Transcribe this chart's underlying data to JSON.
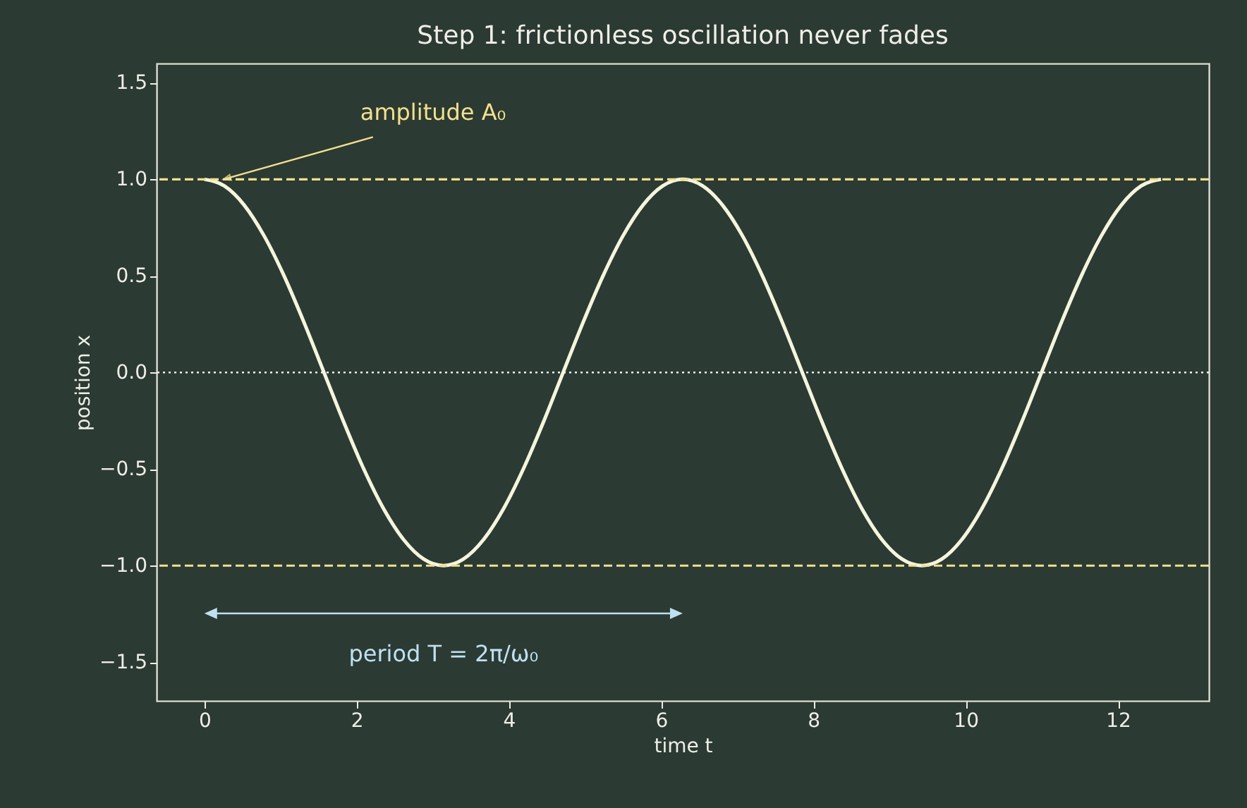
{
  "chart_data": {
    "type": "line",
    "title": "Step 1: frictionless oscillation never fades",
    "xlabel": "time t",
    "ylabel": "position x",
    "x": [
      0,
      0.262,
      0.524,
      0.785,
      1.047,
      1.309,
      1.571,
      1.833,
      2.094,
      2.356,
      2.618,
      2.88,
      3.142,
      3.403,
      3.665,
      3.927,
      4.189,
      4.451,
      4.712,
      4.974,
      5.236,
      5.498,
      5.76,
      6.021,
      6.283,
      6.545,
      6.807,
      7.069,
      7.33,
      7.592,
      7.854,
      8.116,
      8.378,
      8.639,
      8.901,
      9.163,
      9.425,
      9.687,
      9.948,
      10.21,
      10.472,
      10.734,
      10.996,
      11.257,
      11.519,
      11.781,
      12.043,
      12.305,
      12.566
    ],
    "series": [
      {
        "color": "#f5f5dc",
        "values": [
          1,
          0.966,
          0.866,
          0.707,
          0.5,
          0.259,
          0,
          -0.259,
          -0.5,
          -0.707,
          -0.866,
          -0.966,
          -1,
          -0.966,
          -0.866,
          -0.707,
          -0.5,
          -0.259,
          0,
          0.259,
          0.5,
          0.707,
          0.866,
          0.966,
          1,
          0.966,
          0.866,
          0.707,
          0.5,
          0.259,
          0,
          -0.259,
          -0.5,
          -0.707,
          -0.866,
          -0.966,
          -1,
          -0.966,
          -0.866,
          -0.707,
          -0.5,
          -0.259,
          0,
          0.259,
          0.5,
          0.707,
          0.866,
          0.966,
          1
        ]
      }
    ],
    "xlim": [
      -0.628,
      13.195
    ],
    "ylim": [
      -1.7,
      1.6
    ],
    "xticks": [
      0,
      2,
      4,
      6,
      8,
      10,
      12
    ],
    "yticks": [
      {
        "value": -1.5,
        "label": "−1.5"
      },
      {
        "value": -1.0,
        "label": "−1.0"
      },
      {
        "value": -0.5,
        "label": "−0.5"
      },
      {
        "value": 0,
        "label": "0.0"
      },
      {
        "value": 0.5,
        "label": "0.5"
      },
      {
        "value": 1.0,
        "label": "1.0"
      },
      {
        "value": 1.5,
        "label": "1.5"
      }
    ],
    "ref_lines": [
      {
        "axis": "y",
        "value": 1,
        "color": "#f0e08a",
        "line_style": "dashed"
      },
      {
        "axis": "y",
        "value": -1,
        "color": "#f0e08a",
        "line_style": "dashed"
      },
      {
        "axis": "y",
        "value": 0,
        "color": "#f5f5f0",
        "line_style": "dotted"
      }
    ],
    "annotations": [
      {
        "text": "amplitude A₀",
        "x": 0.25,
        "y": 1.0
      },
      "period T = 2π/ω₀"
    ],
    "grid": false,
    "marker": "none",
    "line_style": "solid"
  }
}
